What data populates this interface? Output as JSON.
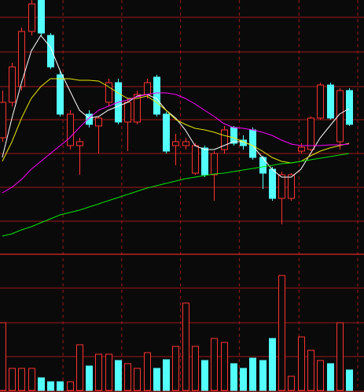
{
  "chart_data": {
    "type": "candlestick",
    "open": [
      14.8,
      19.3,
      21.3,
      28.3,
      32.3,
      27.8,
      22.8,
      13.8,
      13.8,
      17.8,
      16.3,
      19.3,
      21.8,
      16.8,
      16.8,
      20.3,
      22.5,
      17.8,
      13.8,
      13.8,
      10.3,
      13.5,
      10.1,
      13.3,
      16.1,
      14.5,
      15.8,
      12.3,
      10.8,
      7.1,
      7.1,
      13.1,
      13.3,
      17.3,
      21.5,
      14.3,
      20.8
    ],
    "high": [
      20.8,
      24.3,
      28.8,
      32.3,
      32.3,
      28.1,
      23.3,
      18.3,
      14.8,
      18.3,
      17.5,
      22.3,
      22.3,
      19.8,
      20.8,
      22.3,
      22.8,
      18.1,
      15.3,
      14.8,
      14.1,
      13.8,
      13.1,
      16.3,
      16.3,
      15.1,
      16.1,
      12.5,
      11.1,
      10.5,
      10.3,
      14.1,
      17.5,
      21.8,
      21.8,
      21.1,
      21.1
    ],
    "low": [
      14.3,
      18.8,
      20.8,
      27.8,
      27.8,
      23.5,
      17.5,
      13.3,
      10.1,
      16.1,
      12.8,
      18.8,
      16.5,
      13.1,
      16.5,
      19.8,
      17.5,
      12.8,
      11.3,
      13.3,
      10.1,
      9.8,
      6.8,
      12.8,
      13.8,
      13.3,
      12.0,
      8.3,
      6.8,
      3.8,
      6.8,
      12.8,
      13.1,
      17.1,
      17.1,
      13.3,
      16.3
    ],
    "close": [
      19.3,
      23.8,
      28.3,
      31.8,
      28.1,
      23.8,
      17.8,
      17.8,
      14.3,
      16.5,
      17.3,
      21.8,
      16.8,
      19.3,
      20.3,
      21.8,
      17.8,
      13.1,
      14.3,
      14.3,
      13.8,
      10.1,
      12.8,
      15.8,
      14.1,
      13.8,
      12.3,
      10.3,
      7.1,
      10.1,
      10.1,
      13.6,
      17.3,
      21.5,
      17.3,
      20.8,
      16.5
    ],
    "series": [
      {
        "color": "#ffffff",
        "values": [
          12.3,
          17.3,
          21.8,
          25.8,
          27.8,
          26.3,
          23.3,
          20.8,
          18.3,
          17.3,
          17.5,
          18.3,
          18.8,
          19.3,
          20.1,
          20.3,
          19.8,
          18.3,
          17.3,
          15.8,
          13.8,
          13.3,
          13.3,
          13.8,
          14.3,
          14.3,
          13.8,
          12.3,
          10.8,
          9.8,
          9.8,
          10.8,
          12.8,
          14.8,
          16.3,
          17.8,
          18.5
        ]
      },
      {
        "color": "#e6e600",
        "values": [
          11.8,
          14.3,
          17.3,
          19.8,
          21.3,
          22.3,
          22.3,
          22.3,
          22.1,
          22.1,
          22.0,
          21.3,
          20.5,
          19.8,
          19.8,
          20.1,
          19.3,
          18.3,
          17.1,
          16.5,
          16.0,
          15.8,
          15.5,
          15.1,
          14.8,
          14.3,
          13.8,
          13.1,
          12.3,
          11.8,
          11.6,
          11.8,
          12.5,
          13.1,
          13.5,
          13.8,
          14.1
        ]
      },
      {
        "color": "#ff00ff",
        "values": [
          7.8,
          8.5,
          9.5,
          10.8,
          11.8,
          12.8,
          13.8,
          14.8,
          16.1,
          17.3,
          18.3,
          18.8,
          19.3,
          19.6,
          20.0,
          20.3,
          20.5,
          20.5,
          20.3,
          19.8,
          19.1,
          18.3,
          17.5,
          16.6,
          16.1,
          16.0,
          15.8,
          15.5,
          15.1,
          14.5,
          14.0,
          13.8,
          13.8,
          13.8,
          13.9,
          13.9,
          14.0
        ]
      },
      {
        "color": "#00e600",
        "values": [
          2.3,
          2.6,
          3.1,
          3.5,
          4.0,
          4.5,
          5.0,
          5.3,
          5.6,
          6.0,
          6.4,
          6.8,
          7.2,
          7.6,
          8.0,
          8.4,
          8.7,
          9.0,
          9.3,
          9.6,
          9.8,
          10.0,
          10.2,
          10.3,
          10.5,
          10.7,
          10.9,
          11.1,
          11.3,
          11.5,
          11.6,
          11.8,
          12.0,
          12.2,
          12.4,
          12.6,
          12.8
        ]
      }
    ],
    "volume": [
      86,
      28,
      28,
      28,
      16,
      11,
      11,
      11,
      58,
      31,
      46,
      46,
      38,
      34,
      28,
      48,
      28,
      39,
      56,
      111,
      56,
      38,
      66,
      61,
      34,
      28,
      41,
      38,
      66,
      146,
      18,
      68,
      51,
      38,
      34,
      86,
      26
    ],
    "up_color": "#ff3232",
    "down_color": "#54ffff",
    "xlim": [
      -0.24,
      37.55
    ],
    "xticks": [
      6.3,
      12.4,
      18.5,
      24.6,
      30.8,
      36.9
    ],
    "ylim": [
      0,
      32.3
    ],
    "yticks": [
      4.2,
      8.5,
      12.8,
      17.1,
      21.3,
      25.7,
      30.1
    ],
    "vol_ylim": [
      0,
      173
    ],
    "vol_ticks": [
      43,
      86,
      130
    ],
    "grid": true
  }
}
